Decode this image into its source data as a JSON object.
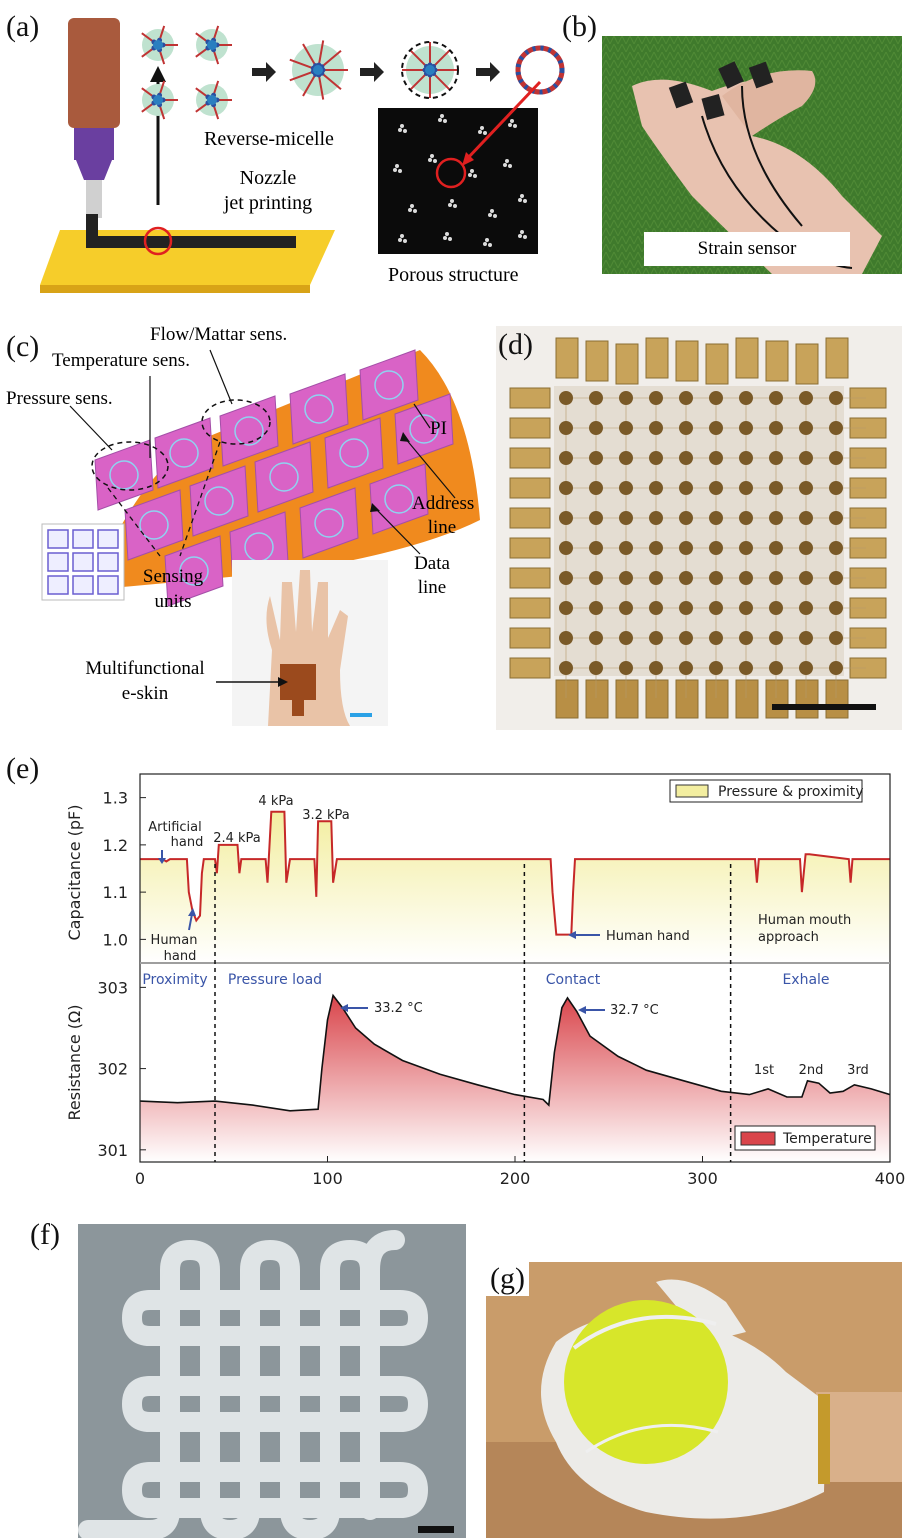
{
  "panels": {
    "a": {
      "label": "(a)",
      "reverse_micelle": "Reverse-micelle",
      "nozzle_line1": "Nozzle",
      "nozzle_line2": "jet printing",
      "porous": "Porous structure"
    },
    "b": {
      "label": "(b)",
      "caption": "Strain sensor"
    },
    "c": {
      "label": "(c)",
      "flow": "Flow/Mattar sens.",
      "temperature": "Temperature sens.",
      "pressure": "Pressure sens.",
      "pi": "PI",
      "address_line1": "Address",
      "address_line2": "line",
      "data_line1": "Data",
      "data_line2": "line",
      "sensing_line1": "Sensing",
      "sensing_line2": "units",
      "eskin_line1": "Multifunctional",
      "eskin_line2": "e-skin"
    },
    "d": {
      "label": "(d)"
    },
    "e": {
      "label": "(e)"
    },
    "f": {
      "label": "(f)"
    },
    "g": {
      "label": "(g)"
    }
  },
  "chart_data": {
    "type": "line",
    "xlim": [
      0,
      400
    ],
    "x_ticks": [
      "0",
      "100",
      "200",
      "300",
      "400"
    ],
    "top": {
      "ylabel": "Capacitance (pF)",
      "ylim": [
        0.95,
        1.35
      ],
      "y_ticks": [
        "1.0",
        "1.1",
        "1.2",
        "1.3"
      ],
      "legend": "Pressure & proximity",
      "line_color": "#c62828",
      "fill_top": "#f3eea0",
      "points": [
        [
          0,
          1.17
        ],
        [
          12,
          1.17
        ],
        [
          14,
          1.165
        ],
        [
          16,
          1.17
        ],
        [
          25,
          1.17
        ],
        [
          26,
          1.1
        ],
        [
          28,
          1.06
        ],
        [
          30,
          1.04
        ],
        [
          32,
          1.05
        ],
        [
          33,
          1.14
        ],
        [
          34,
          1.17
        ],
        [
          40,
          1.17
        ],
        [
          41,
          1.14
        ],
        [
          42,
          1.2
        ],
        [
          52,
          1.2
        ],
        [
          53,
          1.14
        ],
        [
          54,
          1.17
        ],
        [
          67,
          1.17
        ],
        [
          68,
          1.12
        ],
        [
          70,
          1.27
        ],
        [
          77,
          1.27
        ],
        [
          78,
          1.12
        ],
        [
          80,
          1.17
        ],
        [
          93,
          1.17
        ],
        [
          94,
          1.09
        ],
        [
          95,
          1.25
        ],
        [
          102,
          1.25
        ],
        [
          103,
          1.12
        ],
        [
          105,
          1.17
        ],
        [
          219,
          1.17
        ],
        [
          220,
          1.1
        ],
        [
          222,
          1.01
        ],
        [
          230,
          1.01
        ],
        [
          231,
          1.1
        ],
        [
          232,
          1.17
        ],
        [
          328,
          1.17
        ],
        [
          329,
          1.12
        ],
        [
          330,
          1.17
        ],
        [
          352,
          1.17
        ],
        [
          353,
          1.1
        ],
        [
          355,
          1.18
        ],
        [
          357,
          1.18
        ],
        [
          378,
          1.17
        ],
        [
          379,
          1.12
        ],
        [
          380,
          1.17
        ],
        [
          400,
          1.17
        ]
      ],
      "annotations": {
        "artificial_line1": "Artificial",
        "artificial_line2": "hand",
        "human_line1": "Human",
        "human_line2": "hand",
        "p24": "2.4 kPa",
        "p4": "4 kPa",
        "p32": "3.2 kPa",
        "human_hand": "Human hand",
        "mouth_line1": "Human mouth",
        "mouth_line2": "approach"
      }
    },
    "phases": [
      "Proximity",
      "Pressure load",
      "Contact",
      "Exhale"
    ],
    "dividers": [
      40,
      205,
      315
    ],
    "bottom": {
      "ylabel": "Resistance (Ω)",
      "ylim": [
        300.85,
        303.3
      ],
      "y_ticks": [
        "301",
        "302",
        "303"
      ],
      "legend": "Temperature",
      "line_color": "#111111",
      "fill_color": "#d9454b",
      "points": [
        [
          0,
          301.6
        ],
        [
          20,
          301.58
        ],
        [
          40,
          301.6
        ],
        [
          60,
          301.55
        ],
        [
          80,
          301.48
        ],
        [
          95,
          301.5
        ],
        [
          97,
          302.0
        ],
        [
          100,
          302.6
        ],
        [
          103,
          302.9
        ],
        [
          108,
          302.75
        ],
        [
          115,
          302.5
        ],
        [
          125,
          302.3
        ],
        [
          140,
          302.1
        ],
        [
          160,
          301.93
        ],
        [
          180,
          301.8
        ],
        [
          200,
          301.68
        ],
        [
          215,
          301.62
        ],
        [
          218,
          301.55
        ],
        [
          221,
          302.2
        ],
        [
          225,
          302.75
        ],
        [
          228,
          302.87
        ],
        [
          233,
          302.7
        ],
        [
          240,
          302.4
        ],
        [
          255,
          302.15
        ],
        [
          270,
          301.98
        ],
        [
          290,
          301.85
        ],
        [
          310,
          301.72
        ],
        [
          325,
          301.68
        ],
        [
          335,
          301.75
        ],
        [
          345,
          301.65
        ],
        [
          353,
          301.65
        ],
        [
          356,
          301.85
        ],
        [
          362,
          301.82
        ],
        [
          368,
          301.7
        ],
        [
          375,
          301.72
        ],
        [
          381,
          301.8
        ],
        [
          390,
          301.75
        ],
        [
          400,
          301.68
        ]
      ],
      "peak1": "33.2 °C",
      "peak2": "32.7 °C",
      "exhale_1": "1st",
      "exhale_2": "2nd",
      "exhale_3": "3rd"
    }
  }
}
